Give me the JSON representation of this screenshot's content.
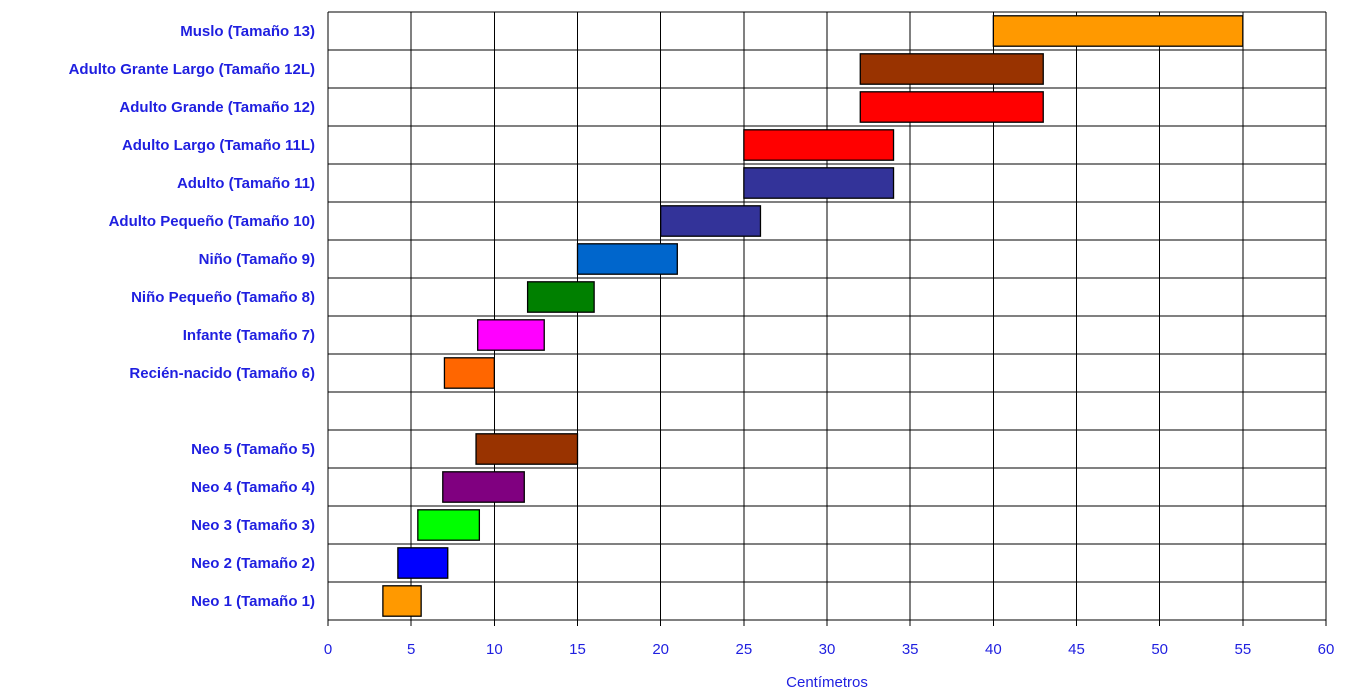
{
  "chart_data": {
    "type": "bar",
    "orientation": "horizontal-floating",
    "xlabel": "Centímetros",
    "xlim": [
      0,
      60
    ],
    "xticks": [
      0,
      5,
      10,
      15,
      20,
      25,
      30,
      35,
      40,
      45,
      50,
      55,
      60
    ],
    "grid": true,
    "legend": "none",
    "label_color": "#1f1fe0",
    "categories": [
      "Muslo (Tamaño 13)",
      "Adulto Grante Largo (Tamaño 12L)",
      "Adulto Grande (Tamaño 12)",
      "Adulto Largo (Tamaño 11L)",
      "Adulto (Tamaño 11)",
      "Adulto Pequeño (Tamaño 10)",
      "Niño (Tamaño 9)",
      "Niño Pequeño (Tamaño 8)",
      "Infante (Tamaño 7)",
      "Recién-nacido (Tamaño 6)",
      "",
      "Neo 5 (Tamaño 5)",
      "Neo 4 (Tamaño 4)",
      "Neo 3 (Tamaño 3)",
      "Neo 2 (Tamaño 2)",
      "Neo 1 (Tamaño 1)"
    ],
    "ranges": [
      {
        "start": 40,
        "end": 55,
        "color": "#ff9900"
      },
      {
        "start": 32,
        "end": 43,
        "color": "#993300"
      },
      {
        "start": 32,
        "end": 43,
        "color": "#ff0000"
      },
      {
        "start": 25,
        "end": 34,
        "color": "#ff0000"
      },
      {
        "start": 25,
        "end": 34,
        "color": "#333399"
      },
      {
        "start": 20,
        "end": 26,
        "color": "#333399"
      },
      {
        "start": 15,
        "end": 21,
        "color": "#0066cc"
      },
      {
        "start": 12,
        "end": 16,
        "color": "#008000"
      },
      {
        "start": 9,
        "end": 13,
        "color": "#ff00ff"
      },
      {
        "start": 7,
        "end": 10,
        "color": "#ff6600"
      },
      null,
      {
        "start": 8.9,
        "end": 15,
        "color": "#993300"
      },
      {
        "start": 6.9,
        "end": 11.8,
        "color": "#800080"
      },
      {
        "start": 5.4,
        "end": 9.1,
        "color": "#00ff00"
      },
      {
        "start": 4.2,
        "end": 7.2,
        "color": "#0000ff"
      },
      {
        "start": 3.3,
        "end": 5.6,
        "color": "#ff9900"
      }
    ]
  }
}
